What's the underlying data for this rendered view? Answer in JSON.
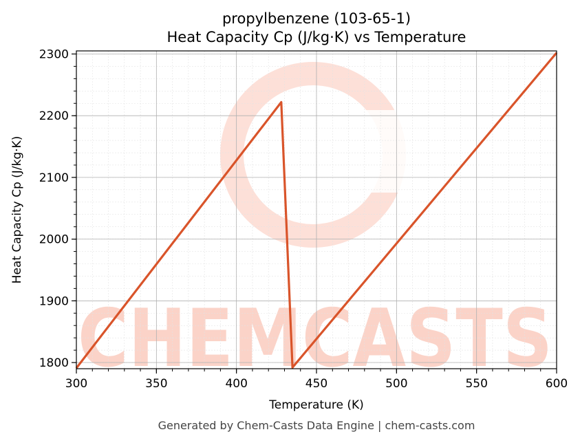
{
  "chart_data": {
    "type": "line",
    "title_line1": "propylbenzene (103-65-1)",
    "title_line2": "Heat Capacity Cp (J/kg·K) vs Temperature",
    "xlabel": "Temperature (K)",
    "ylabel": "Heat Capacity Cp (J/kg·K)",
    "xlim": [
      300,
      600
    ],
    "ylim": [
      1790,
      2305
    ],
    "x_ticks": [
      "300",
      "350",
      "400",
      "450",
      "500",
      "550",
      "600"
    ],
    "y_ticks": [
      "1800",
      "1900",
      "2000",
      "2100",
      "2200",
      "2300"
    ],
    "grid": true,
    "series": [
      {
        "color": "#d9542a",
        "points": [
          [
            300,
            1791
          ],
          [
            428,
            2222
          ],
          [
            435,
            1792
          ],
          [
            600,
            2302
          ]
        ]
      }
    ]
  },
  "footer": "Generated by Chem-Casts Data Engine | chem-casts.com",
  "watermark": "CHEMCASTS"
}
